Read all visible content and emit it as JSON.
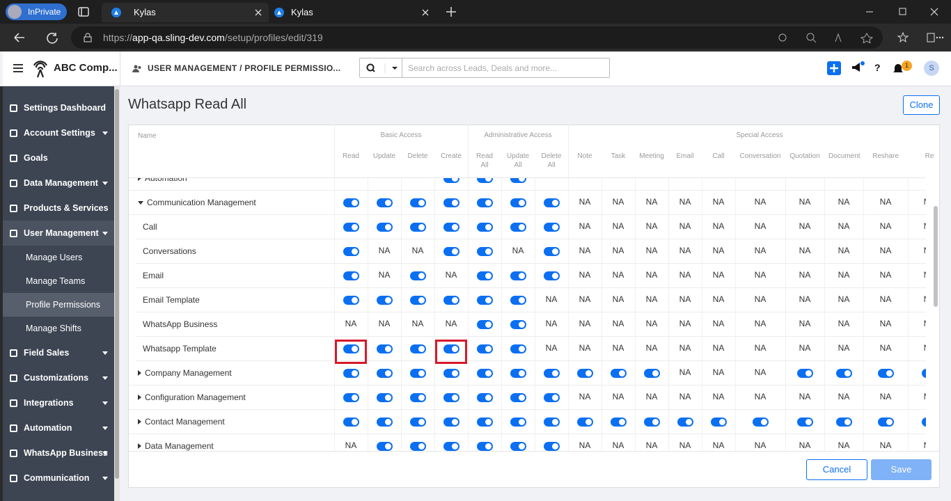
{
  "browser": {
    "private_label": "InPrivate",
    "tabs": [
      {
        "title": "Kylas"
      },
      {
        "title": "Kylas"
      }
    ],
    "url": {
      "scheme": "https://",
      "host": "app-qa.sling-dev.com",
      "path": "/setup/profiles/edit/319"
    }
  },
  "header": {
    "company": "ABC Comp...",
    "breadcrumb": "USER MANAGEMENT / PROFILE PERMISSIO...",
    "search_placeholder": "Search across Leads, Deals and more...",
    "help": "?",
    "notification_count": "1",
    "avatar": "S"
  },
  "sidebar": {
    "items": [
      {
        "label": "Settings Dashboard",
        "expandable": false
      },
      {
        "label": "Account Settings",
        "expandable": true
      },
      {
        "label": "Goals",
        "expandable": false
      },
      {
        "label": "Data Management",
        "expandable": true
      },
      {
        "label": "Products & Services",
        "expandable": false
      },
      {
        "label": "User Management",
        "expandable": true,
        "open": true
      },
      {
        "label": "Manage Users",
        "sub": true
      },
      {
        "label": "Manage Teams",
        "sub": true
      },
      {
        "label": "Profile Permissions",
        "sub": true,
        "active": true
      },
      {
        "label": "Manage Shifts",
        "sub": true
      },
      {
        "label": "Field Sales",
        "expandable": true
      },
      {
        "label": "Customizations",
        "expandable": true
      },
      {
        "label": "Integrations",
        "expandable": true
      },
      {
        "label": "Automation",
        "expandable": true
      },
      {
        "label": "WhatsApp Business",
        "expandable": true
      },
      {
        "label": "Communication",
        "expandable": true
      }
    ]
  },
  "page": {
    "title": "Whatsapp Read All",
    "clone_button": "Clone",
    "cancel_button": "Cancel",
    "save_button": "Save"
  },
  "table": {
    "name_header": "Name",
    "groups": [
      {
        "label": "Basic Access",
        "span": 4
      },
      {
        "label": "Administrative Access",
        "span": 3
      },
      {
        "label": "Special Access",
        "span": 10
      }
    ],
    "columns": [
      "Read",
      "Update",
      "Delete",
      "Create",
      "Read All",
      "Update All",
      "Delete All",
      "Note",
      "Task",
      "Meeting",
      "Email",
      "Call",
      "Conversation",
      "Quotation",
      "Document",
      "Reshare",
      "Re"
    ],
    "rows": [
      {
        "label": "Automation",
        "level": 0,
        "expanded": false,
        "cells": [
          null,
          null,
          null,
          true,
          true,
          true,
          null,
          null,
          null,
          null,
          null,
          null,
          null,
          null,
          null,
          null,
          null
        ]
      },
      {
        "label": "Communication Management",
        "level": 0,
        "expanded": true,
        "cells": [
          true,
          true,
          true,
          true,
          true,
          true,
          true,
          "NA",
          "NA",
          "NA",
          "NA",
          "NA",
          "NA",
          "NA",
          "NA",
          "NA",
          "NA"
        ]
      },
      {
        "label": "Call",
        "level": 1,
        "cells": [
          true,
          true,
          true,
          true,
          true,
          true,
          true,
          "NA",
          "NA",
          "NA",
          "NA",
          "NA",
          "NA",
          "NA",
          "NA",
          "NA",
          "NA"
        ]
      },
      {
        "label": "Conversations",
        "level": 1,
        "cells": [
          true,
          "NA",
          "NA",
          true,
          true,
          "NA",
          true,
          "NA",
          "NA",
          "NA",
          "NA",
          "NA",
          "NA",
          "NA",
          "NA",
          "NA",
          "NA"
        ]
      },
      {
        "label": "Email",
        "level": 1,
        "cells": [
          true,
          "NA",
          true,
          "NA",
          true,
          true,
          true,
          "NA",
          "NA",
          "NA",
          "NA",
          "NA",
          "NA",
          "NA",
          "NA",
          "NA",
          "NA"
        ]
      },
      {
        "label": "Email Template",
        "level": 1,
        "cells": [
          true,
          true,
          true,
          true,
          true,
          true,
          "NA",
          "NA",
          "NA",
          "NA",
          "NA",
          "NA",
          "NA",
          "NA",
          "NA",
          "NA",
          "NA"
        ]
      },
      {
        "label": "WhatsApp Business",
        "level": 1,
        "cells": [
          "NA",
          "NA",
          "NA",
          "NA",
          true,
          true,
          "NA",
          "NA",
          "NA",
          "NA",
          "NA",
          "NA",
          "NA",
          "NA",
          "NA",
          "NA",
          "NA"
        ]
      },
      {
        "label": "Whatsapp Template",
        "level": 1,
        "highlighted": [
          0,
          3
        ],
        "cells": [
          true,
          true,
          true,
          true,
          true,
          true,
          "NA",
          "NA",
          "NA",
          "NA",
          "NA",
          "NA",
          "NA",
          "NA",
          "NA",
          "NA",
          "NA"
        ]
      },
      {
        "label": "Company Management",
        "level": 0,
        "expanded": false,
        "cells": [
          true,
          true,
          true,
          true,
          true,
          true,
          true,
          true,
          true,
          true,
          "NA",
          "NA",
          "NA",
          true,
          true,
          true,
          true
        ]
      },
      {
        "label": "Configuration Management",
        "level": 0,
        "expanded": false,
        "cells": [
          true,
          true,
          true,
          true,
          true,
          true,
          true,
          "NA",
          "NA",
          "NA",
          "NA",
          "NA",
          "NA",
          "NA",
          "NA",
          "NA",
          "NA"
        ]
      },
      {
        "label": "Contact Management",
        "level": 0,
        "expanded": false,
        "cells": [
          true,
          true,
          true,
          true,
          true,
          true,
          true,
          true,
          true,
          true,
          true,
          true,
          true,
          true,
          true,
          true,
          true
        ]
      },
      {
        "label": "Data Management",
        "level": 0,
        "expanded": false,
        "cells": [
          "NA",
          true,
          true,
          true,
          true,
          true,
          true,
          "NA",
          "NA",
          "NA",
          "NA",
          "NA",
          "NA",
          "NA",
          "NA",
          "NA",
          "NA"
        ]
      }
    ]
  }
}
